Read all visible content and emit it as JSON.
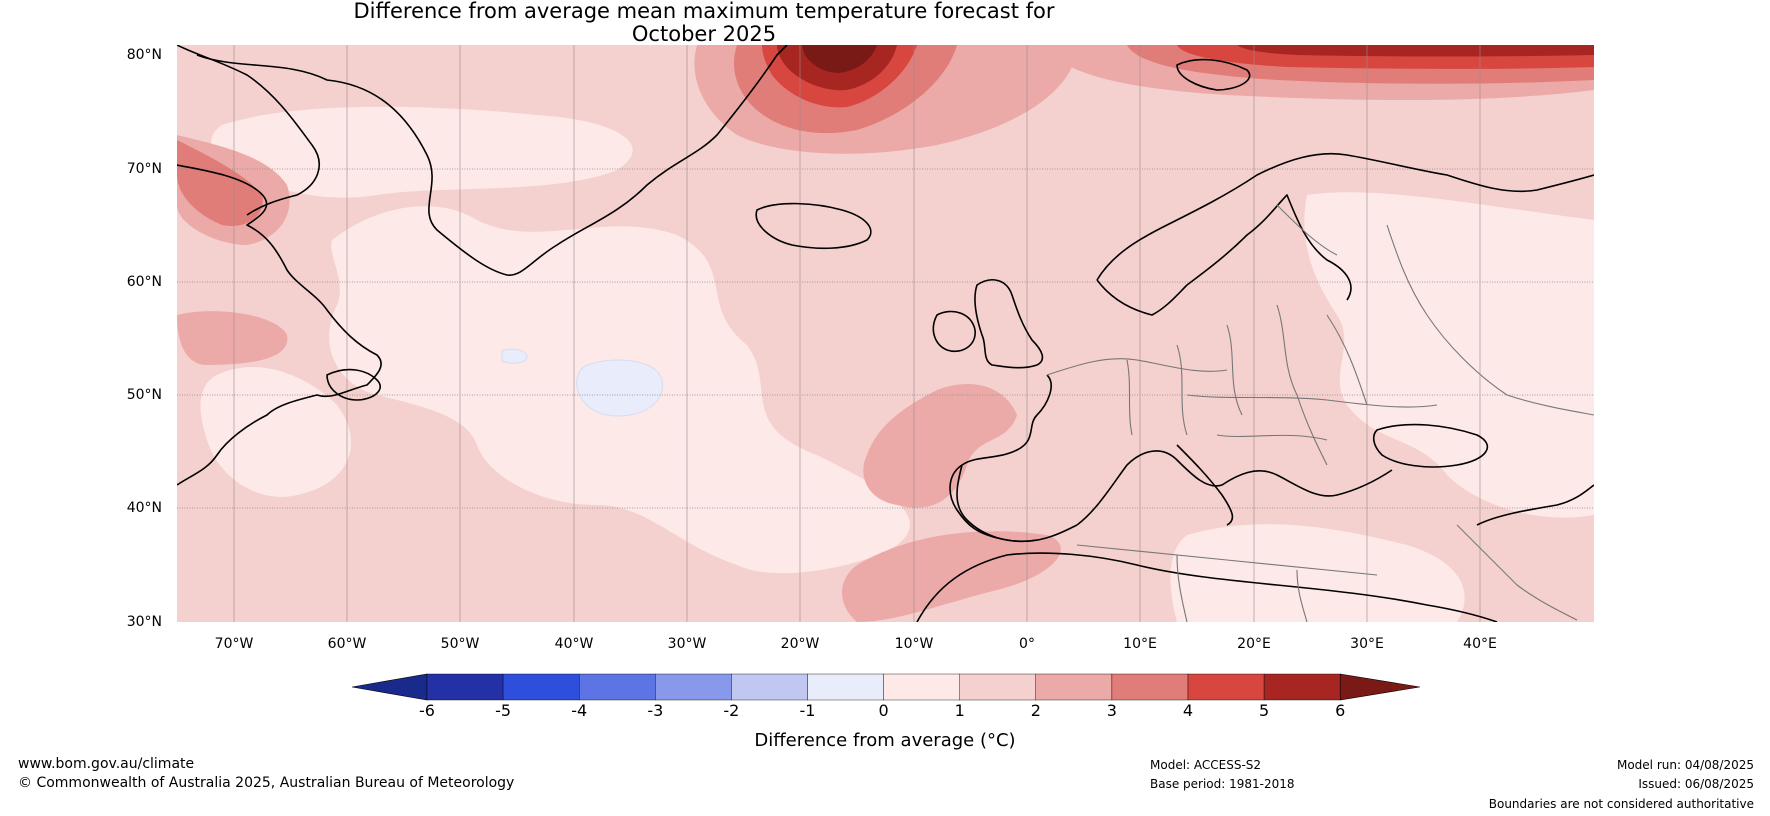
{
  "title": {
    "line1": "Difference from average mean maximum temperature forecast for",
    "line2": "October 2025"
  },
  "map": {
    "region": "North Atlantic and Europe",
    "lat_range": [
      30,
      80
    ],
    "lon_range": [
      -75,
      50
    ],
    "lat_labels": [
      "80°N",
      "70°N",
      "60°N",
      "50°N",
      "40°N",
      "30°N"
    ],
    "lon_labels": [
      "70°W",
      "60°W",
      "50°W",
      "40°W",
      "30°W",
      "20°W",
      "10°W",
      "0°",
      "10°E",
      "20°E",
      "30°E",
      "40°E"
    ],
    "background_anomaly_color": "#f4d0ce",
    "features": [
      {
        "name": "Greenland east coast",
        "level": "5-6+"
      },
      {
        "name": "Svalbard",
        "level": "4-6"
      },
      {
        "name": "Central North Atlantic",
        "level": "-1-0"
      },
      {
        "name": "Iberia and North Africa",
        "level": "2-3"
      },
      {
        "name": "Eastern Europe",
        "level": "0-1"
      }
    ]
  },
  "colorbar": {
    "ticks": [
      "-6",
      "-5",
      "-4",
      "-3",
      "-2",
      "-1",
      "0",
      "1",
      "2",
      "3",
      "4",
      "5",
      "6"
    ],
    "colors": [
      "#2330a6",
      "#2e4fdc",
      "#5c74e4",
      "#8898eb",
      "#c0c8f2",
      "#e8ecfb",
      "#fce9e8",
      "#f4d0ce",
      "#ebaaa8",
      "#e17d78",
      "#d8473f",
      "#a82621"
    ],
    "under_color": "#1a2a8c",
    "over_color": "#7a1a16",
    "label": "Difference from average (°C)"
  },
  "footer": {
    "website": "www.bom.gov.au/climate",
    "copyright": "© Commonwealth of Australia 2025, Australian Bureau of Meteorology",
    "model": "Model: ACCESS-S2",
    "base_period": "Base period: 1981-2018",
    "model_run": "Model run: 04/08/2025",
    "issued": "Issued: 06/08/2025",
    "disclaimer": "Boundaries are not considered authoritative"
  }
}
